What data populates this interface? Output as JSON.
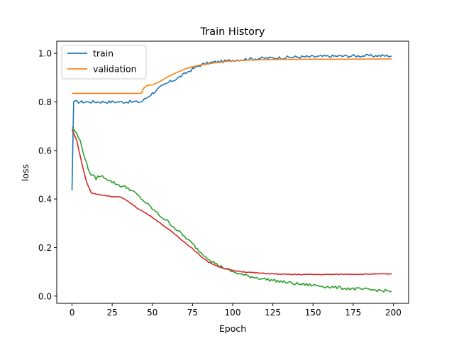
{
  "chart_data": {
    "type": "line",
    "title": "Train History",
    "xlabel": "Epoch",
    "ylabel": "loss",
    "xlim": [
      -9.5,
      209.5
    ],
    "ylim": [
      -0.03,
      1.05
    ],
    "xticks": [
      0,
      25,
      50,
      75,
      100,
      125,
      150,
      175,
      200
    ],
    "yticks": [
      0.0,
      0.2,
      0.4,
      0.6,
      0.8,
      1.0
    ],
    "xtick_labels": [
      "0",
      "25",
      "50",
      "75",
      "100",
      "125",
      "150",
      "175",
      "200"
    ],
    "ytick_labels": [
      "0.0",
      "0.2",
      "0.4",
      "0.6",
      "0.8",
      "1.0"
    ],
    "grid": false,
    "legend_position": "top-left",
    "legend": [
      "train",
      "validation"
    ],
    "series": [
      {
        "name": "train",
        "color": "#1f77b4",
        "in_legend": true,
        "noise": 0.006,
        "points": [
          [
            0,
            0.435
          ],
          [
            1,
            0.8
          ],
          [
            5,
            0.8
          ],
          [
            20,
            0.8
          ],
          [
            40,
            0.8
          ],
          [
            43,
            0.8
          ],
          [
            45,
            0.81
          ],
          [
            50,
            0.835
          ],
          [
            55,
            0.86
          ],
          [
            60,
            0.88
          ],
          [
            65,
            0.895
          ],
          [
            70,
            0.915
          ],
          [
            75,
            0.935
          ],
          [
            80,
            0.952
          ],
          [
            85,
            0.96
          ],
          [
            90,
            0.965
          ],
          [
            95,
            0.967
          ],
          [
            100,
            0.972
          ],
          [
            110,
            0.977
          ],
          [
            120,
            0.98
          ],
          [
            130,
            0.982
          ],
          [
            140,
            0.985
          ],
          [
            150,
            0.986
          ],
          [
            160,
            0.988
          ],
          [
            170,
            0.989
          ],
          [
            180,
            0.99
          ],
          [
            190,
            0.99
          ],
          [
            199,
            0.99
          ]
        ]
      },
      {
        "name": "validation",
        "color": "#ff7f0e",
        "in_legend": true,
        "noise": 0,
        "points": [
          [
            0,
            0.835
          ],
          [
            40,
            0.835
          ],
          [
            43,
            0.835
          ],
          [
            45,
            0.86
          ],
          [
            47,
            0.868
          ],
          [
            50,
            0.87
          ],
          [
            55,
            0.885
          ],
          [
            60,
            0.905
          ],
          [
            65,
            0.92
          ],
          [
            70,
            0.935
          ],
          [
            75,
            0.945
          ],
          [
            80,
            0.952
          ],
          [
            85,
            0.957
          ],
          [
            90,
            0.962
          ],
          [
            95,
            0.966
          ],
          [
            100,
            0.969
          ],
          [
            110,
            0.972
          ],
          [
            120,
            0.974
          ],
          [
            130,
            0.975
          ],
          [
            150,
            0.976
          ],
          [
            170,
            0.976
          ],
          [
            199,
            0.977
          ]
        ]
      },
      {
        "name": "",
        "color": "#2ca02c",
        "in_legend": false,
        "noise": 0.006,
        "points": [
          [
            0,
            0.695
          ],
          [
            2,
            0.68
          ],
          [
            5,
            0.64
          ],
          [
            8,
            0.57
          ],
          [
            10,
            0.525
          ],
          [
            12,
            0.5
          ],
          [
            15,
            0.485
          ],
          [
            17,
            0.495
          ],
          [
            20,
            0.49
          ],
          [
            25,
            0.47
          ],
          [
            30,
            0.455
          ],
          [
            35,
            0.445
          ],
          [
            40,
            0.42
          ],
          [
            45,
            0.39
          ],
          [
            50,
            0.36
          ],
          [
            55,
            0.33
          ],
          [
            60,
            0.305
          ],
          [
            65,
            0.275
          ],
          [
            70,
            0.245
          ],
          [
            75,
            0.215
          ],
          [
            80,
            0.18
          ],
          [
            85,
            0.155
          ],
          [
            90,
            0.13
          ],
          [
            95,
            0.115
          ],
          [
            100,
            0.1
          ],
          [
            105,
            0.09
          ],
          [
            110,
            0.082
          ],
          [
            120,
            0.07
          ],
          [
            130,
            0.06
          ],
          [
            140,
            0.05
          ],
          [
            150,
            0.045
          ],
          [
            160,
            0.038
          ],
          [
            170,
            0.032
          ],
          [
            180,
            0.028
          ],
          [
            190,
            0.024
          ],
          [
            199,
            0.02
          ]
        ]
      },
      {
        "name": "",
        "color": "#d62728",
        "in_legend": false,
        "noise": 0.0015,
        "points": [
          [
            0,
            0.685
          ],
          [
            3,
            0.64
          ],
          [
            6,
            0.55
          ],
          [
            9,
            0.47
          ],
          [
            12,
            0.425
          ],
          [
            15,
            0.42
          ],
          [
            20,
            0.415
          ],
          [
            25,
            0.41
          ],
          [
            30,
            0.408
          ],
          [
            35,
            0.39
          ],
          [
            40,
            0.365
          ],
          [
            45,
            0.345
          ],
          [
            50,
            0.325
          ],
          [
            55,
            0.3
          ],
          [
            60,
            0.275
          ],
          [
            65,
            0.25
          ],
          [
            70,
            0.222
          ],
          [
            75,
            0.195
          ],
          [
            80,
            0.165
          ],
          [
            85,
            0.14
          ],
          [
            90,
            0.125
          ],
          [
            95,
            0.112
          ],
          [
            100,
            0.105
          ],
          [
            110,
            0.098
          ],
          [
            120,
            0.093
          ],
          [
            130,
            0.09
          ],
          [
            140,
            0.089
          ],
          [
            150,
            0.089
          ],
          [
            160,
            0.089
          ],
          [
            170,
            0.09
          ],
          [
            180,
            0.09
          ],
          [
            190,
            0.091
          ],
          [
            199,
            0.091
          ]
        ]
      }
    ]
  }
}
